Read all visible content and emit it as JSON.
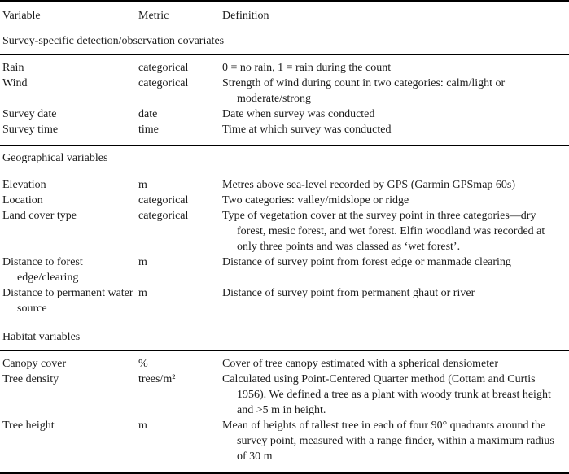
{
  "table": {
    "columns": [
      "Variable",
      "Metric",
      "Definition"
    ],
    "sections": [
      {
        "title": "Survey-specific detection/observation covariates",
        "rows": [
          {
            "variable": "Rain",
            "metric": "categorical",
            "definition": "0 = no rain, 1 = rain during the count"
          },
          {
            "variable": "Wind",
            "metric": "categorical",
            "definition": "Strength of wind during count in two categories: calm/light or moderate/strong"
          },
          {
            "variable": "Survey date",
            "metric": "date",
            "definition": "Date when survey was conducted"
          },
          {
            "variable": "Survey time",
            "metric": "time",
            "definition": "Time at which survey was conducted"
          }
        ]
      },
      {
        "title": "Geographical variables",
        "rows": [
          {
            "variable": "Elevation",
            "metric": "m",
            "definition": "Metres above sea-level recorded by GPS (Garmin GPSmap 60s)"
          },
          {
            "variable": "Location",
            "metric": "categorical",
            "definition": "Two categories: valley/midslope or ridge"
          },
          {
            "variable": "Land cover type",
            "metric": "categorical",
            "definition": "Type of vegetation cover at the survey point in three categories—dry forest, mesic forest, and wet forest. Elfin woodland was recorded at only three points and was classed as ‘wet forest’."
          },
          {
            "variable": "Distance to forest edge/clearing",
            "metric": "m",
            "definition": "Distance of survey point from forest edge or manmade clearing"
          },
          {
            "variable": "Distance to permanent water source",
            "metric": "m",
            "definition": "Distance of survey point from permanent ghaut or river"
          }
        ]
      },
      {
        "title": "Habitat variables",
        "rows": [
          {
            "variable": "Canopy cover",
            "metric": "%",
            "definition": "Cover of tree canopy estimated with a spherical densiometer"
          },
          {
            "variable": "Tree density",
            "metric": "trees/m²",
            "definition": "Calculated using Point-Centered Quarter method (Cottam and Curtis 1956). We defined a tree as a plant with woody trunk at breast height and >5 m in height."
          },
          {
            "variable": "Tree height",
            "metric": "m",
            "definition": "Mean of heights of tallest tree in each of four 90° quadrants around the survey point, measured with a range finder, within a maximum radius of 30 m"
          }
        ]
      }
    ]
  },
  "colors": {
    "text": "#1c1c1c",
    "rule": "#000000",
    "background": "#ffffff"
  }
}
